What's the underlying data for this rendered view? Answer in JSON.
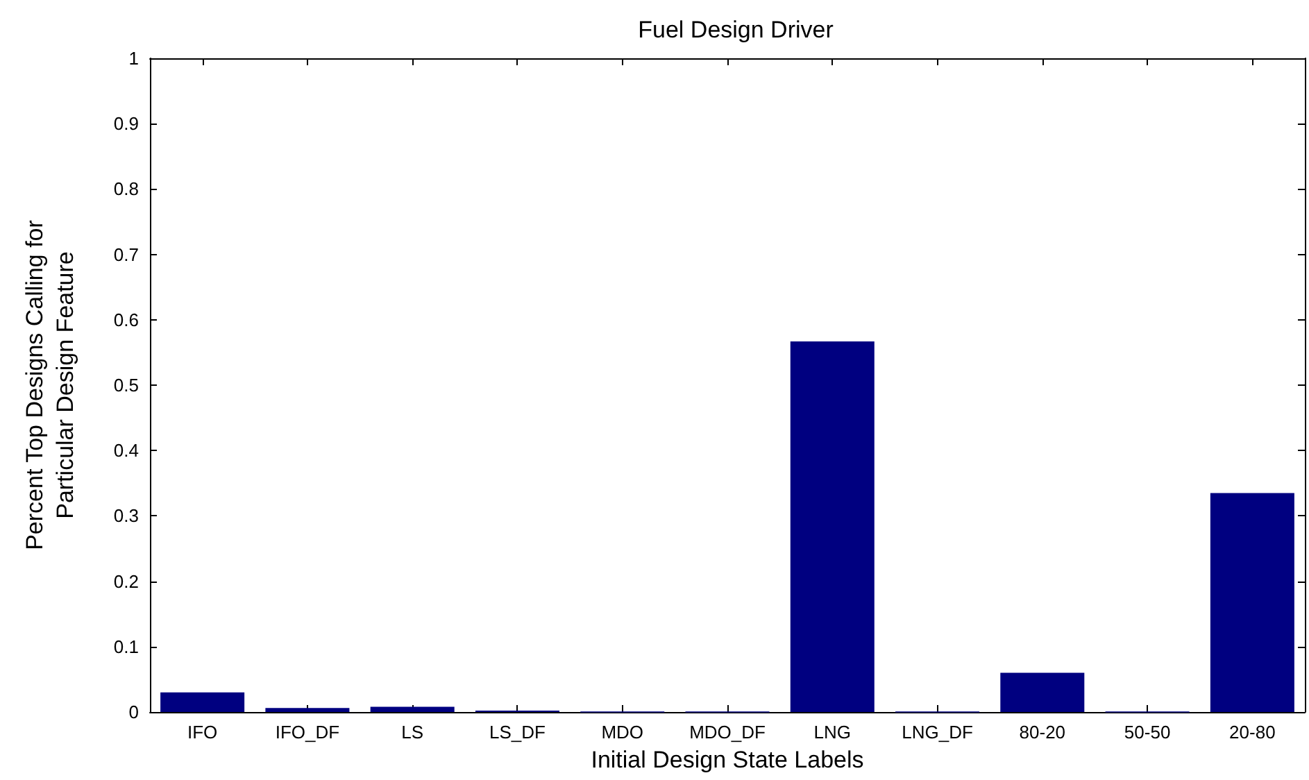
{
  "chart_data": {
    "type": "bar",
    "title": "Fuel Design Driver",
    "xlabel": "Initial Design State Labels",
    "ylabel": "Percent Top Designs Calling for\nParticular Design Feature",
    "categories": [
      "IFO",
      "IFO_DF",
      "LS",
      "LS_DF",
      "MDO",
      "MDO_DF",
      "LNG",
      "LNG_DF",
      "80-20",
      "50-50",
      "20-80"
    ],
    "values": [
      0.03,
      0.006,
      0.008,
      0.002,
      0,
      0,
      0.567,
      0,
      0.06,
      0,
      0.335
    ],
    "color": "#000080",
    "ylim": [
      0,
      1
    ],
    "yticks": [
      0,
      0.1,
      0.2,
      0.3,
      0.4,
      0.5,
      0.6,
      0.7,
      0.8,
      0.9,
      1
    ],
    "grid": false
  }
}
